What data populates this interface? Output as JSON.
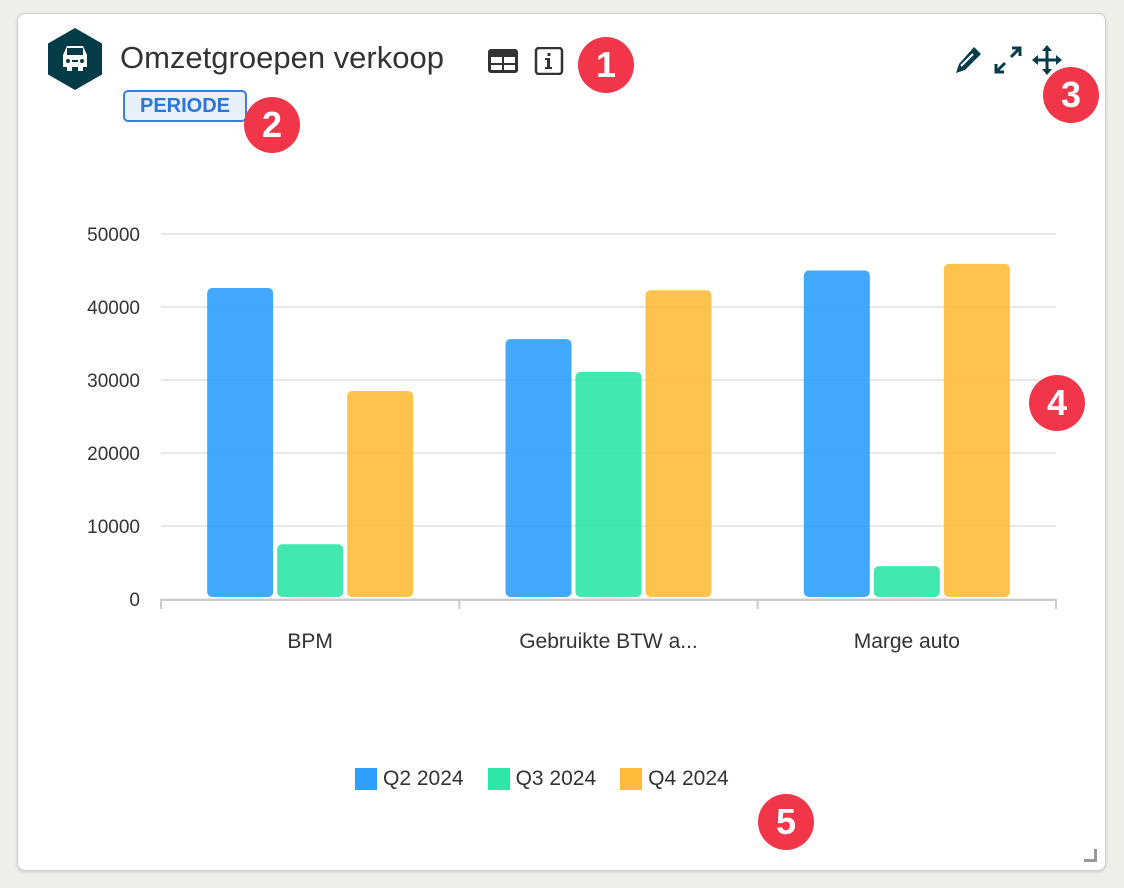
{
  "widget": {
    "title": "Omzetgroepen verkoop",
    "badge": "PERIODE",
    "icons": [
      "car-icon",
      "table-icon",
      "info-icon",
      "pencil-icon",
      "expand-icon",
      "move-icon"
    ]
  },
  "markers": [
    "1",
    "2",
    "3",
    "4",
    "5"
  ],
  "chart_data": {
    "type": "bar",
    "categories": [
      "BPM",
      "Gebruikte BTW a...",
      "Marge auto"
    ],
    "series": [
      {
        "name": "Q2 2024",
        "color": "#2e9ffb",
        "values": [
          42600,
          35600,
          45000
        ]
      },
      {
        "name": "Q3 2024",
        "color": "#2ee6a6",
        "values": [
          7500,
          31100,
          4500
        ]
      },
      {
        "name": "Q4 2024",
        "color": "#ffbc3a",
        "values": [
          28500,
          42300,
          45900
        ]
      }
    ],
    "yticks": [
      "0",
      "10000",
      "20000",
      "30000",
      "40000",
      "50000"
    ],
    "ylim": [
      0,
      50000
    ],
    "legend": "bottom",
    "grid": true
  }
}
